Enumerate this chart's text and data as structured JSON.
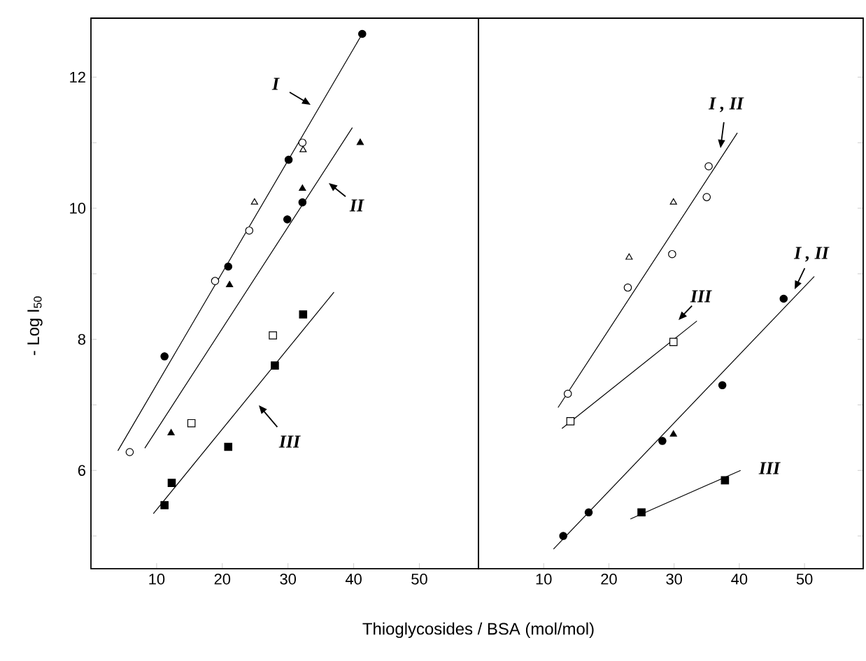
{
  "chart_data": [
    {
      "type": "scatter",
      "xlabel": "Thioglycosides / BSA (mol/mol)",
      "ylabel": "- Log I$_{50}$",
      "xlim": [
        0,
        59
      ],
      "ylim": [
        4.5,
        12.9
      ],
      "xticks": [
        10,
        20,
        30,
        40,
        50
      ],
      "yticks": [
        {
          "value": 5,
          "label": null
        },
        6,
        {
          "value": 7,
          "label": null
        },
        8,
        {
          "value": 9,
          "label": null
        },
        10,
        {
          "value": 11,
          "label": null
        },
        12
      ],
      "series": [
        {
          "marker": "circle",
          "color": "#000000",
          "x": [
            11.2,
            20.9,
            29.9,
            30.1,
            32.2,
            41.3
          ],
          "values": [
            7.74,
            9.11,
            9.83,
            10.74,
            10.09,
            12.66
          ]
        },
        {
          "marker": "circle",
          "color": "#ffffff",
          "x": [
            5.9,
            18.9,
            24.1,
            32.2
          ],
          "values": [
            6.28,
            8.89,
            9.66,
            11.0
          ]
        },
        {
          "marker": "triangle",
          "color": "#ffffff",
          "x": [
            24.9,
            32.3
          ],
          "values": [
            10.09,
            10.89
          ]
        },
        {
          "marker": "triangle",
          "color": "#000000",
          "x": [
            12.2,
            21.1,
            32.2,
            41.0
          ],
          "values": [
            6.57,
            8.83,
            10.3,
            11.0
          ]
        },
        {
          "marker": "square",
          "color": "#000000",
          "x": [
            11.2,
            12.3,
            20.9,
            28.0,
            32.3
          ],
          "values": [
            5.47,
            5.81,
            6.36,
            7.6,
            8.38
          ]
        },
        {
          "marker": "square",
          "color": "#ffffff",
          "x": [
            15.3,
            27.7
          ],
          "values": [
            6.72,
            8.06
          ]
        },
        {
          "type": "line",
          "color": "#000000",
          "x": [
            4.1,
            41.3
          ],
          "values": [
            6.3,
            12.66
          ]
        },
        {
          "type": "line",
          "color": "#000000",
          "x": [
            8.2,
            39.8
          ],
          "values": [
            6.34,
            11.23
          ]
        },
        {
          "type": "line",
          "color": "#000000",
          "x": [
            9.5,
            37.0
          ],
          "values": [
            5.34,
            8.72
          ]
        }
      ],
      "annotations": [
        "I",
        "II",
        "III"
      ]
    },
    {
      "type": "scatter",
      "xlim": [
        0,
        59
      ],
      "ylim": [
        4.5,
        12.9
      ],
      "xticks": [
        10,
        20,
        30,
        40,
        50
      ],
      "yticks": [
        5,
        6,
        7,
        8,
        9,
        10,
        11,
        12
      ],
      "tick_labels": "x",
      "series": [
        {
          "marker": "circle",
          "color": "#ffffff",
          "x": [
            13.7,
            22.9,
            29.7,
            35.0,
            35.3
          ],
          "values": [
            7.17,
            8.79,
            9.3,
            10.17,
            10.64
          ]
        },
        {
          "marker": "triangle",
          "color": "#ffffff",
          "x": [
            23.1,
            29.9
          ],
          "values": [
            9.25,
            10.09
          ]
        },
        {
          "marker": "square",
          "color": "#ffffff",
          "x": [
            14.1,
            29.9
          ],
          "values": [
            6.75,
            7.96
          ]
        },
        {
          "marker": "circle",
          "color": "#000000",
          "x": [
            13.0,
            16.9,
            28.2,
            37.4,
            46.8
          ],
          "values": [
            5.0,
            5.36,
            6.45,
            7.3,
            8.62
          ]
        },
        {
          "marker": "triangle",
          "color": "#000000",
          "x": [
            29.9
          ],
          "values": [
            6.55
          ]
        },
        {
          "marker": "square",
          "color": "#000000",
          "x": [
            25.0,
            37.8
          ],
          "values": [
            5.36,
            5.85
          ]
        },
        {
          "type": "line",
          "color": "#000000",
          "x": [
            12.2,
            39.7
          ],
          "values": [
            6.96,
            11.15
          ]
        },
        {
          "type": "line",
          "color": "#000000",
          "x": [
            12.8,
            33.5
          ],
          "values": [
            6.64,
            8.28
          ]
        },
        {
          "type": "line",
          "color": "#000000",
          "x": [
            11.5,
            51.5
          ],
          "values": [
            4.8,
            8.96
          ]
        },
        {
          "type": "line",
          "color": "#000000",
          "x": [
            23.3,
            40.2
          ],
          "values": [
            5.26,
            6.0
          ]
        }
      ],
      "annotations": [
        "I , II",
        "III",
        "I , II",
        "III"
      ]
    }
  ]
}
